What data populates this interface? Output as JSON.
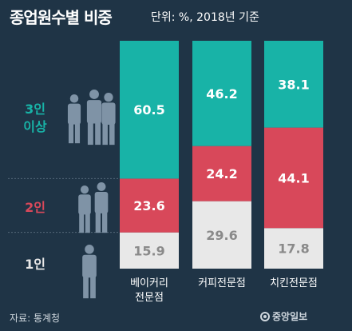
{
  "title": "종업원수별 비중",
  "subtitle": "단위: %, 2018년 기준",
  "source": "자료: 통계청",
  "logo": "중앙일보",
  "colors": {
    "background": "#1f3446",
    "three_plus": "#18b3a7",
    "two": "#d8485a",
    "one": "#e8e8e8",
    "three_plus_label": "#18b3a7",
    "two_label": "#d8485a",
    "one_label": "#e8e8e8"
  },
  "icons": [
    "people-group-icon",
    "person-pair-icon",
    "person-single-icon"
  ],
  "chart_data": {
    "type": "bar",
    "stacked": true,
    "normalized": true,
    "title": "종업원수별 비중",
    "subtitle": "단위: %, 2018년 기준",
    "categories": [
      {
        "line1": "베이커리",
        "line2": "전문점"
      },
      {
        "line1": "커피전문점",
        "line2": ""
      },
      {
        "line1": "치킨전문점",
        "line2": ""
      }
    ],
    "series": [
      {
        "name": "1인",
        "values": [
          15.9,
          29.6,
          17.8
        ]
      },
      {
        "name": "2인",
        "values": [
          23.6,
          24.2,
          44.1
        ]
      },
      {
        "name": "3인 이상",
        "values": [
          60.5,
          46.2,
          38.1
        ]
      }
    ],
    "legend_labels": [
      {
        "lines": [
          "3인",
          "이상"
        ]
      },
      {
        "lines": [
          "2인"
        ]
      },
      {
        "lines": [
          "1인"
        ]
      }
    ],
    "ylim": [
      0,
      100
    ]
  }
}
